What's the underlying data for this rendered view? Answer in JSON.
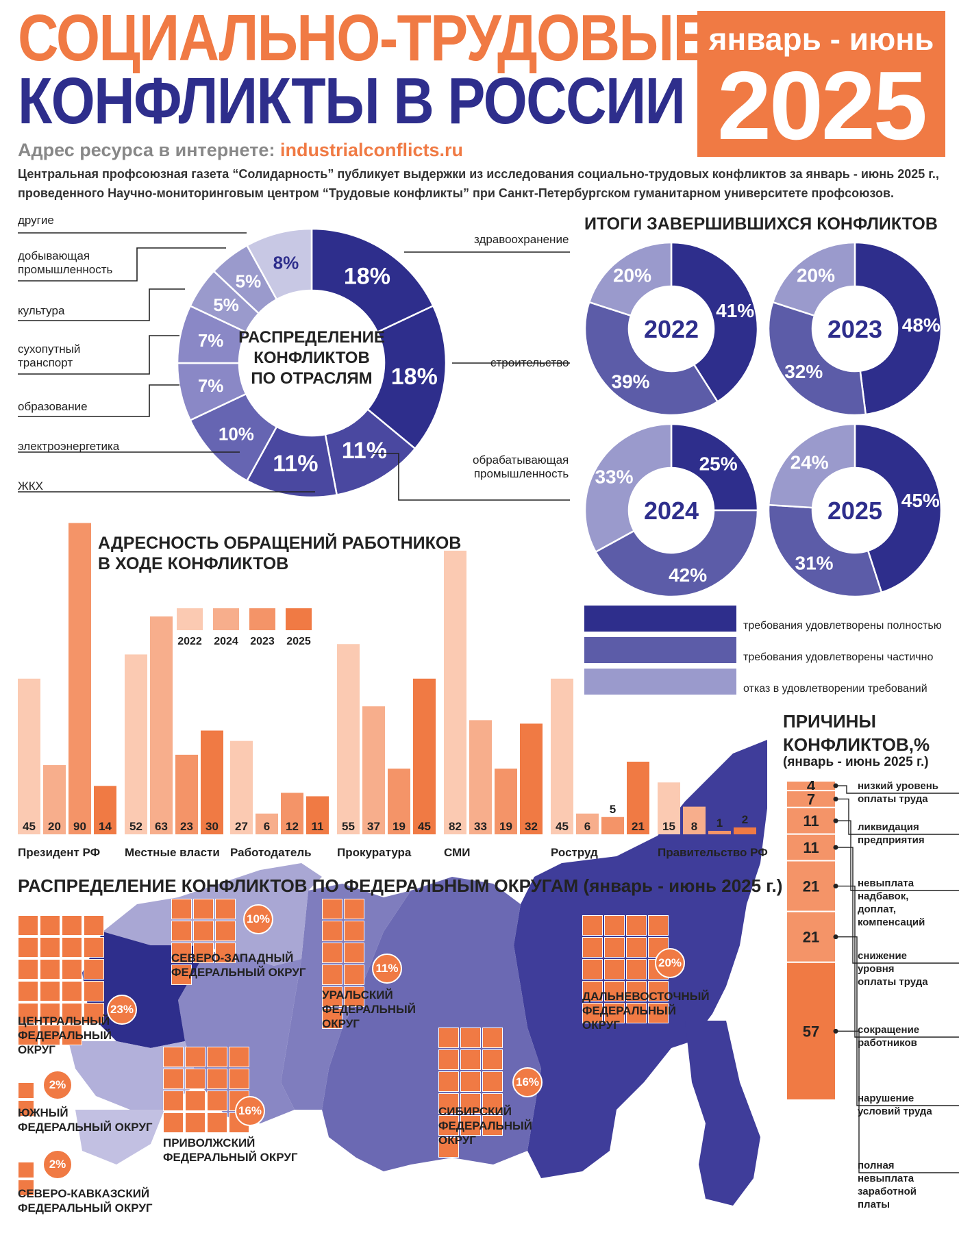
{
  "title_line1": "СОЦИАЛЬНО-ТРУДОВЫЕ",
  "title_line2": "КОНФЛИКТЫ В РОССИИ",
  "period_label": "январь - июнь",
  "year": "2025",
  "web_label": "Адрес ресурса в интернете:",
  "web_url": "industrialconflicts.ru",
  "intro": "Центральная профсоюзная газета “Солидарность” публикует выдержки из исследования социально-трудовых конфликтов за январь - июнь 2025 г., проведенного Научно-мониторинговым центром “Трудовые конфликты” при Санкт-Петербургском гуманитарном университете профсоюзов.",
  "colors": {
    "orange": "#f07a44",
    "navy": "#2e2e8c",
    "mid": "#5c5ca8",
    "light": "#9a9acc",
    "pale": "#c8c8e4"
  },
  "chart_data": [
    {
      "type": "pie",
      "title": "РАСПРЕДЕЛЕНИЕ КОНФЛИКТОВ ПО ОТРАСЛЯМ",
      "slices": [
        {
          "label": "здравоохранение",
          "value": 18,
          "display": "18%"
        },
        {
          "label": "строительство",
          "value": 18,
          "display": "18%"
        },
        {
          "label": "обрабатывающая промышленность",
          "value": 11,
          "display": "11%"
        },
        {
          "label": "ЖКХ",
          "value": 11,
          "display": "11%"
        },
        {
          "label": "электроэнергетика",
          "value": 10,
          "display": "10%"
        },
        {
          "label": "образование",
          "value": 7,
          "display": "7%"
        },
        {
          "label": "сухопутный транспорт",
          "value": 7,
          "display": "7%"
        },
        {
          "label": "культура",
          "value": 5,
          "display": "5%"
        },
        {
          "label": "добывающая промышленность",
          "value": 5,
          "display": "5%"
        },
        {
          "label": "другие",
          "value": 8,
          "display": "8%"
        }
      ]
    },
    {
      "type": "pie",
      "title": "ИТОГИ ЗАВЕРШИВШИХСЯ КОНФЛИКТОВ",
      "legend": [
        "требования удовлетворены полностью",
        "требования удовлетворены частично",
        "отказ в удовлетворении требований"
      ],
      "donuts": [
        {
          "year": "2022",
          "values": [
            41,
            39,
            20
          ]
        },
        {
          "year": "2023",
          "values": [
            48,
            32,
            20
          ]
        },
        {
          "year": "2024",
          "values": [
            25,
            42,
            33
          ]
        },
        {
          "year": "2025",
          "values": [
            45,
            31,
            24
          ]
        }
      ]
    },
    {
      "type": "bar",
      "title": "АДРЕСНОСТЬ ОБРАЩЕНИЙ РАБОТНИКОВ В ХОДЕ КОНФЛИКТОВ",
      "legend_years": [
        "2022",
        "2024",
        "2023",
        "2025"
      ],
      "categories": [
        "Президент РФ",
        "Местные власти",
        "Работодатель",
        "Прокуратура",
        "СМИ",
        "Роструд",
        "Правительство РФ"
      ],
      "series": [
        {
          "name": "2022",
          "values": [
            45,
            52,
            27,
            55,
            82,
            45,
            15
          ]
        },
        {
          "name": "2024",
          "values": [
            20,
            63,
            6,
            37,
            33,
            6,
            8
          ]
        },
        {
          "name": "2023",
          "values": [
            90,
            23,
            12,
            19,
            19,
            5,
            1
          ]
        },
        {
          "name": "2025",
          "values": [
            14,
            30,
            11,
            45,
            32,
            21,
            2
          ]
        }
      ]
    },
    {
      "type": "bar",
      "title": "ПРИЧИНЫ КОНФЛИКТОВ,%",
      "subtitle": "(январь - июнь 2025 г.)",
      "categories": [
        "низкий уровень оплаты труда",
        "ликвидация предприятия",
        "невыплата надбавок, доплат, компенсаций",
        "снижение уровня оплаты труда",
        "сокращение работников",
        "нарушение условий труда",
        "полная невыплата заработной платы"
      ],
      "values": [
        4,
        7,
        11,
        11,
        21,
        21,
        57
      ]
    }
  ],
  "industry_labels": {
    "other": "другие",
    "mining": "добывающая\nпромышленность",
    "culture": "культура",
    "transport": "сухопутный\nтранспорт",
    "education": "образование",
    "power": "электроэнергетика",
    "housing": "ЖКХ",
    "health": "здравоохранение",
    "construction": "строительство",
    "manufacturing": "обрабатывающая\nпромышленность"
  },
  "industry_center": "РАСПРЕДЕЛЕНИЕ\nКОНФЛИКТОВ\nПО ОТРАСЛЯМ",
  "outcomes_title": "ИТОГИ ЗАВЕРШИВШИХСЯ КОНФЛИКТОВ",
  "outcome_legend": [
    "требования удовлетворены полностью",
    "требования удовлетворены частично",
    "отказ в удовлетворении требований"
  ],
  "appeals_title": "АДРЕСНОСТЬ ОБРАЩЕНИЙ РАБОТНИКОВ\nВ ХОДЕ КОНФЛИКТОВ",
  "appeals_legend": [
    "2022",
    "2024",
    "2023",
    "2025"
  ],
  "causes_title": "ПРИЧИНЫ\nКОНФЛИКТОВ,%",
  "causes_sub": "(январь - июнь 2025 г.)",
  "cause_labels": [
    "низкий уровень\nоплаты труда",
    "ликвидация\nпредприятия",
    "невыплата\nнадбавок,\nдоплат,\nкомпенсаций",
    "снижение\nуровня\nоплаты труда",
    "сокращение\nработников",
    "нарушение\nусловий труда",
    "полная\nневыплата\nзаработной\nплаты"
  ],
  "map_title": "РАСПРЕДЕЛЕНИЕ КОНФЛИКТОВ ПО ФЕДЕРАЛЬНЫМ ОКРУГАМ (январь - июнь 2025 г.)",
  "districts": {
    "central": {
      "name": "ЦЕНТРАЛЬНЫЙ\nФЕДЕРАЛЬНЫЙ\nОКРУГ",
      "pct": "23%",
      "value": 23
    },
    "northwest": {
      "name": "СЕВЕРО-ЗАПАДНЫЙ\nФЕДЕРАЛЬНЫЙ ОКРУГ",
      "pct": "10%",
      "value": 10
    },
    "ural": {
      "name": "УРАЛЬСКИЙ\nФЕДЕРАЛЬНЫЙ\nОКРУГ",
      "pct": "11%",
      "value": 11
    },
    "fareast": {
      "name": "ДАЛЬНЕВОСТОЧНЫЙ\nФЕДЕРАЛЬНЫЙ\nОКРУГ",
      "pct": "20%",
      "value": 20
    },
    "volga": {
      "name": "ПРИВОЛЖСКИЙ\nФЕДЕРАЛЬНЫЙ ОКРУГ",
      "pct": "16%",
      "value": 16
    },
    "siberia": {
      "name": "СИБИРСКИЙ\nФЕДЕРАЛЬНЫЙ\nОКРУГ",
      "pct": "16%",
      "value": 16
    },
    "south": {
      "name": "ЮЖНЫЙ\nФЕДЕРАЛЬНЫЙ ОКРУГ",
      "pct": "2%",
      "value": 2
    },
    "ncauc": {
      "name": "СЕВЕРО-КАВКАЗСКИЙ\nФЕДЕРАЛЬНЫЙ ОКРУГ",
      "pct": "2%",
      "value": 2
    }
  }
}
